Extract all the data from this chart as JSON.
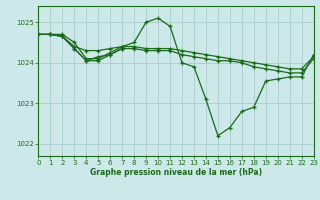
{
  "background_color": "#cce8e8",
  "grid_color": "#aacccc",
  "line_color": "#1a6b1a",
  "text_color": "#1a6b1a",
  "xlabel": "Graphe pression niveau de la mer (hPa)",
  "xlim": [
    0,
    23
  ],
  "ylim": [
    1021.7,
    1025.4
  ],
  "yticks": [
    1022,
    1023,
    1024,
    1025
  ],
  "xticks": [
    0,
    1,
    2,
    3,
    4,
    5,
    6,
    7,
    8,
    9,
    10,
    11,
    12,
    13,
    14,
    15,
    16,
    17,
    18,
    19,
    20,
    21,
    22,
    23
  ],
  "series": [
    {
      "x": [
        0,
        1,
        2,
        3,
        4,
        5,
        6,
        7,
        8,
        9,
        10,
        11,
        12,
        13,
        14,
        15,
        16,
        17,
        18,
        19,
        20,
        21,
        22,
        23
      ],
      "y": [
        1024.7,
        1024.7,
        1024.7,
        1024.5,
        1024.1,
        1024.1,
        1024.25,
        1024.4,
        1024.5,
        1025.0,
        1025.1,
        1024.9,
        1024.0,
        1023.9,
        1023.1,
        1022.2,
        1022.4,
        1022.8,
        1022.9,
        1023.55,
        1023.6,
        1023.65,
        1023.65,
        1024.2
      ]
    },
    {
      "x": [
        0,
        1,
        2,
        3,
        4,
        5,
        6,
        7,
        8,
        9,
        10,
        11,
        12,
        13,
        14,
        15,
        16,
        17,
        18,
        19,
        20,
        21,
        22,
        23
      ],
      "y": [
        1024.7,
        1024.7,
        1024.65,
        1024.4,
        1024.3,
        1024.3,
        1024.35,
        1024.4,
        1024.4,
        1024.35,
        1024.35,
        1024.35,
        1024.3,
        1024.25,
        1024.2,
        1024.15,
        1024.1,
        1024.05,
        1024.0,
        1023.95,
        1023.9,
        1023.85,
        1023.85,
        1024.15
      ]
    },
    {
      "x": [
        0,
        1,
        2,
        3,
        4,
        5,
        6,
        7,
        8,
        9,
        10,
        11,
        12,
        13,
        14,
        15,
        16,
        17,
        18,
        19,
        20,
        21,
        22,
        23
      ],
      "y": [
        1024.7,
        1024.7,
        1024.65,
        1024.35,
        1024.05,
        1024.05,
        1024.2,
        1024.35,
        1024.35,
        1024.3,
        1024.3,
        1024.3,
        1024.2,
        1024.15,
        1024.1,
        1024.05,
        1024.05,
        1024.0,
        1023.9,
        1023.85,
        1023.8,
        1023.75,
        1023.75,
        1024.1
      ]
    },
    {
      "x": [
        0,
        1,
        2,
        3,
        4,
        5,
        6,
        7
      ],
      "y": [
        1024.7,
        1024.7,
        1024.65,
        1024.35,
        1024.05,
        1024.15,
        1024.2,
        1024.35
      ]
    }
  ]
}
